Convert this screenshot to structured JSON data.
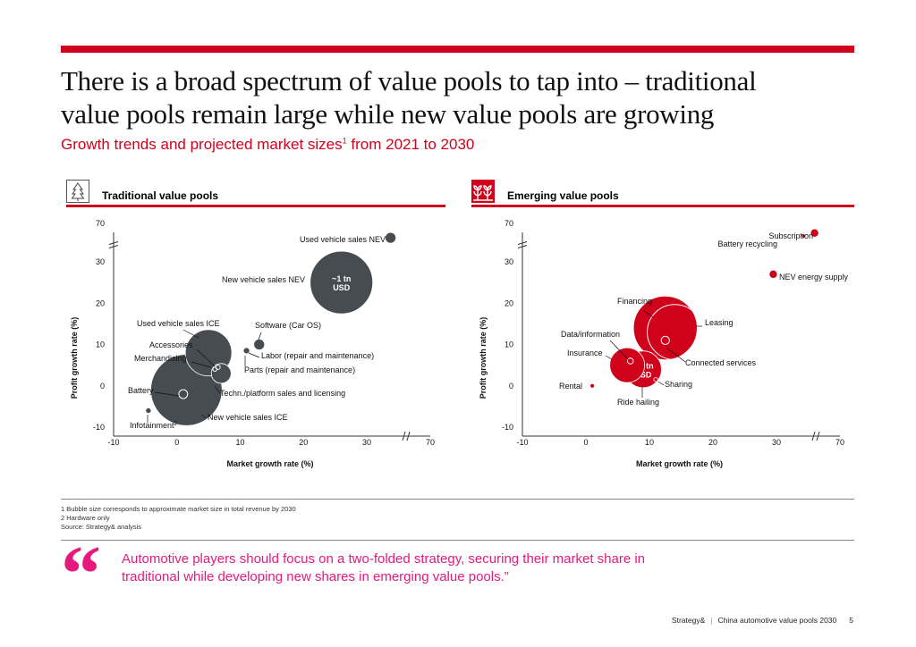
{
  "header": {
    "title_line1": "There is a broad spectrum of value pools to tap into – traditional",
    "title_line2": "value pools remain large while new value pools are growing",
    "subtitle_pre": "Growth trends and projected market sizes",
    "subtitle_sup": "1",
    "subtitle_post": " from 2021 to 2030",
    "accent_color": "#d0021b"
  },
  "panels": {
    "traditional": {
      "label": "Traditional value pools",
      "icon": "tree-icon"
    },
    "emerging": {
      "label": "Emerging value pools",
      "icon": "sprouts-icon"
    }
  },
  "chart_data": [
    {
      "type": "scatter",
      "subtype": "bubble",
      "title": "Traditional value pools",
      "xlabel": "Market growth rate (%)",
      "ylabel": "Profit growth rate (%)",
      "xticks": [
        "-10",
        "0",
        "10",
        "20",
        "30",
        "70"
      ],
      "yticks": [
        "70",
        "30",
        "20",
        "10",
        "0",
        "-10"
      ],
      "xlim": [
        -10,
        70
      ],
      "ylim": [
        -10,
        70
      ],
      "axis_break": "between 30 and 70 on both axes",
      "grid": false,
      "bubble_color": "#464c50",
      "size_note": "Bubble size corresponds to approximate market size in total revenue by 2030",
      "points": [
        {
          "name": "Used vehicle sales NEV",
          "x": 45,
          "y": 55,
          "size": 0.03
        },
        {
          "name": "New vehicle sales NEV",
          "x": 26,
          "y": 25,
          "size": 1.0,
          "annotation": "~1 tn USD"
        },
        {
          "name": "Used vehicle sales ICE",
          "x": 5,
          "y": 8,
          "size": 0.55
        },
        {
          "name": "Software (Car OS)",
          "x": 13,
          "y": 10,
          "size": 0.03
        },
        {
          "name": "Labor (repair and maintenance)",
          "x": 11,
          "y": 8.5,
          "size": 0.015
        },
        {
          "name": "Parts (repair and maintenance)",
          "x": 11,
          "y": 8.5,
          "size": 0.01
        },
        {
          "name": "Accessories",
          "x": 6.5,
          "y": 4.5,
          "size": 0.005,
          "outline": true
        },
        {
          "name": "Merchandising",
          "x": 6,
          "y": 4,
          "size": 0.004,
          "outline": true
        },
        {
          "name": "Techn./platform sales and licensing",
          "x": 7,
          "y": 3,
          "size": 0.1
        },
        {
          "name": "New vehicle sales ICE",
          "x": 1.5,
          "y": -1,
          "size": 1.3
        },
        {
          "name": "Battery",
          "x": 1,
          "y": -2,
          "size": 0.02,
          "outline": true
        },
        {
          "name": "Infotainment",
          "name_sup": "2",
          "x": -4.5,
          "y": -6,
          "size": 0.008
        }
      ]
    },
    {
      "type": "scatter",
      "subtype": "bubble",
      "title": "Emerging value pools",
      "xlabel": "Market growth rate (%)",
      "ylabel": "Profit growth rate (%)",
      "xticks": [
        "-10",
        "0",
        "10",
        "20",
        "30",
        "70"
      ],
      "yticks": [
        "70",
        "30",
        "20",
        "10",
        "0",
        "-10"
      ],
      "xlim": [
        -10,
        70
      ],
      "ylim": [
        -10,
        70
      ],
      "axis_break": "between 30 and 70 on both axes",
      "grid": false,
      "bubble_color": "#d0021b",
      "points": [
        {
          "name": "Subscription",
          "x": 54,
          "y": 60,
          "size": 0.01
        },
        {
          "name": "Battery recycling",
          "x": 47,
          "y": 57,
          "size": 0.002
        },
        {
          "name": "NEV energy supply",
          "x": 29.5,
          "y": 27,
          "size": 0.01
        },
        {
          "name": "Financing",
          "x": 12.5,
          "y": 14,
          "size": 0.6
        },
        {
          "name": "Leasing",
          "x": 14,
          "y": 13,
          "size": 0.45,
          "outline": true
        },
        {
          "name": "Connected services",
          "x": 12.5,
          "y": 11,
          "size": 0.01,
          "outline": true
        },
        {
          "name": "Insurance",
          "x": 6.5,
          "y": 5,
          "size": 0.18
        },
        {
          "name": "Data/information",
          "x": 7,
          "y": 6,
          "size": 0.005,
          "outline": true
        },
        {
          "name": "Ride hailing",
          "x": 9,
          "y": 4,
          "size": 0.2,
          "annotation": "0.2 tn USD"
        },
        {
          "name": "Sharing",
          "x": 11,
          "y": 1.5,
          "size": 0.002
        },
        {
          "name": "Rental",
          "x": 1,
          "y": 0,
          "size": 0.003
        }
      ]
    }
  ],
  "footnotes": {
    "note1": "1 Bubble size corresponds to approximate market size in total revenue by 2030",
    "note2": "2 Hardware only",
    "source": "Source: Strategy& analysis"
  },
  "quote": {
    "text": "Automotive players should focus on a two-folded strategy, securing their market share in traditional while developing new shares in emerging value pools.”",
    "mark": "“",
    "color": "#e6197e"
  },
  "footer": {
    "brand": "Strategy&",
    "separator": "|",
    "doc_title": "China automotive value pools 2030",
    "page": "5"
  }
}
